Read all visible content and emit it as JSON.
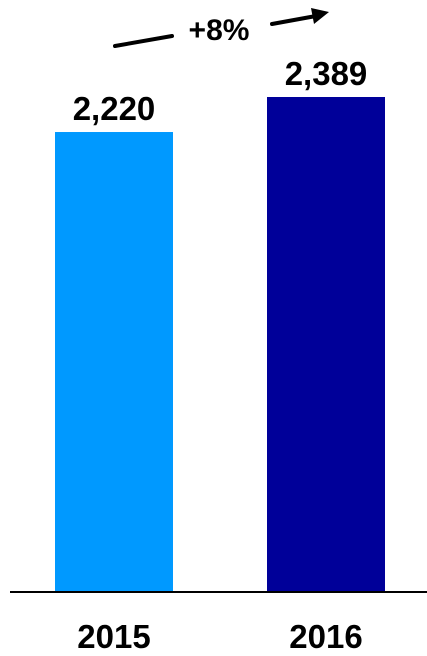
{
  "chart_data": {
    "type": "bar",
    "categories": [
      "2015",
      "2016"
    ],
    "values": [
      2220,
      2389
    ],
    "value_labels": [
      "2,220",
      "2,389"
    ],
    "colors": [
      "#0099ff",
      "#000099"
    ],
    "change_label": "+8%",
    "ylim": [
      0,
      2389
    ],
    "grid": false,
    "legend": "none"
  }
}
